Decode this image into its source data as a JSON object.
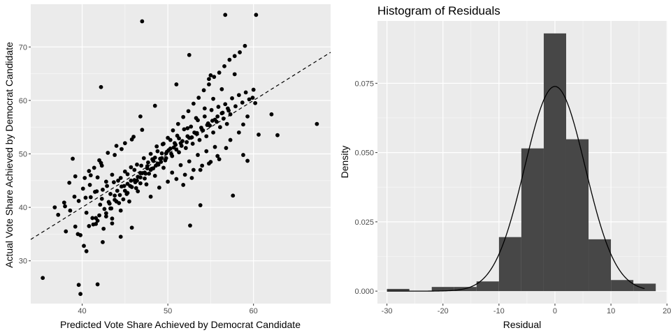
{
  "chart_data": [
    {
      "type": "scatter",
      "title": "",
      "xlabel": "Predicted Vote Share Achieved by Democrat Candidate",
      "ylabel": "Actual Vote Share Achieved by Democrat Candidate",
      "xlim": [
        34,
        69
      ],
      "ylim": [
        22,
        78
      ],
      "xticks": [
        40,
        50,
        60
      ],
      "yticks": [
        30,
        40,
        50,
        60,
        70
      ],
      "grid": true,
      "reference_line": {
        "style": "dashed",
        "slope": 1,
        "intercept": 0
      },
      "x": [
        35.4,
        39.6,
        39.8,
        41.8,
        39.5,
        40.2,
        40.5,
        40.8,
        41.6,
        42.4,
        42.2,
        43.5,
        44.5,
        45.8,
        52.6,
        53.8,
        57.6,
        60.6,
        62.8,
        67.4,
        62.1,
        60.2,
        58.8,
        59.3,
        59.9,
        47.0,
        56.7,
        60.3,
        52.5,
        55.0,
        54.8,
        51.0,
        46.8,
        48.5,
        37.2,
        37.9,
        38.5,
        38.9,
        39.2,
        38.1,
        36.8,
        39.1,
        39.6,
        40.1,
        40.5,
        40.9,
        41.2,
        41.5,
        41.8,
        42.1,
        42.4,
        42.8,
        43.1,
        43.5,
        43.8,
        44.2,
        44.6,
        45.0,
        45.3,
        45.7,
        46.1,
        46.4,
        46.8,
        47.2,
        47.6,
        48.0,
        48.3,
        48.7,
        49.1,
        49.5,
        49.9,
        50.3,
        50.7,
        51.1,
        51.5,
        51.9,
        52.3,
        52.7,
        53.1,
        53.5,
        53.9,
        54.3,
        54.7,
        55.1,
        55.5,
        55.9,
        56.3,
        56.7,
        57.1,
        57.5,
        57.9,
        58.3,
        58.7,
        59.1,
        59.5,
        60.0,
        41.0,
        41.7,
        42.3,
        42.9,
        43.3,
        43.7,
        44.1,
        44.5,
        44.9,
        45.3,
        45.7,
        46.1,
        46.5,
        46.9,
        47.3,
        47.7,
        48.1,
        48.5,
        48.9,
        49.3,
        49.7,
        50.1,
        50.5,
        50.9,
        51.3,
        51.7,
        52.1,
        52.5,
        52.9,
        53.3,
        53.7,
        54.1,
        54.5,
        54.9,
        55.3,
        55.7,
        56.1,
        56.5,
        56.9,
        57.3,
        42.0,
        42.6,
        43.2,
        43.8,
        44.4,
        45.0,
        45.6,
        46.2,
        46.8,
        47.4,
        48.0,
        48.6,
        49.2,
        49.8,
        50.4,
        51.0,
        51.6,
        52.2,
        52.8,
        53.4,
        54.0,
        54.6,
        55.2,
        55.8,
        56.4,
        57.0,
        41.4,
        42.0,
        42.5,
        43.0,
        43.5,
        44.0,
        44.5,
        45.0,
        45.5,
        46.0,
        46.5,
        47.0,
        47.5,
        48.0,
        48.5,
        49.0,
        49.5,
        50.0,
        50.5,
        51.0,
        51.5,
        52.0,
        52.5,
        53.0,
        53.5,
        54.0,
        54.5,
        55.0,
        55.5,
        56.0,
        40.3,
        40.8,
        41.3,
        41.8,
        42.3,
        42.8,
        43.3,
        43.8,
        44.3,
        44.8,
        45.3,
        45.8,
        46.3,
        46.8,
        47.3,
        47.8,
        48.3,
        48.8,
        49.3,
        49.8,
        50.3,
        50.8,
        51.3,
        51.8,
        52.3,
        52.8,
        53.3,
        53.8,
        54.3,
        54.8,
        55.3,
        55.8,
        56.3,
        56.8,
        57.3,
        57.8,
        58.3,
        58.8,
        59.3,
        38.0,
        38.6,
        39.2,
        39.8,
        40.4,
        41.0,
        41.6,
        42.2,
        42.8,
        43.4,
        44.0,
        44.6,
        45.2,
        45.8,
        46.4,
        47.0,
        47.6,
        48.2,
        48.8,
        49.4,
        50.0,
        50.6,
        51.2,
        51.8,
        52.4,
        53.0,
        53.6,
        54.2,
        54.8,
        55.4,
        56.0,
        56.6,
        57.2,
        57.8,
        58.4,
        59.0
      ],
      "y": [
        26.8,
        25.5,
        23.8,
        25.6,
        35.0,
        32.8,
        31.8,
        36.5,
        38.0,
        33.5,
        62.5,
        37.0,
        34.5,
        36.2,
        36.6,
        40.4,
        42.2,
        53.6,
        53.5,
        55.6,
        57.4,
        59.5,
        49.8,
        48.7,
        60.5,
        74.8,
        76.0,
        76.0,
        68.5,
        64.7,
        64.0,
        63.0,
        57.0,
        59.0,
        38.6,
        40.9,
        44.6,
        49.1,
        45.8,
        35.5,
        40.0,
        42.0,
        41.2,
        43.5,
        39.0,
        44.2,
        38.0,
        42.9,
        45.6,
        40.5,
        43.3,
        44.8,
        41.0,
        46.1,
        42.2,
        45.0,
        43.9,
        46.7,
        44.4,
        47.5,
        45.1,
        48.0,
        46.4,
        49.2,
        47.3,
        50.0,
        48.7,
        51.4,
        49.1,
        51.9,
        50.4,
        52.6,
        51.2,
        53.4,
        52.0,
        54.6,
        53.3,
        55.1,
        54.0,
        56.3,
        54.9,
        57.0,
        55.7,
        58.2,
        56.4,
        58.8,
        57.6,
        59.3,
        58.1,
        60.4,
        58.9,
        61.0,
        59.6,
        61.5,
        60.2,
        62.0,
        41.9,
        43.0,
        41.6,
        44.0,
        42.5,
        44.7,
        43.1,
        45.5,
        44.0,
        46.2,
        45.0,
        47.0,
        45.7,
        47.8,
        46.5,
        48.4,
        47.2,
        49.3,
        48.0,
        50.1,
        48.8,
        50.7,
        49.6,
        51.7,
        50.3,
        52.4,
        51.1,
        53.0,
        51.9,
        53.8,
        52.6,
        54.4,
        53.3,
        55.3,
        54.0,
        56.0,
        55.0,
        56.6,
        55.6,
        57.4,
        38.5,
        39.7,
        40.7,
        41.4,
        42.3,
        43.1,
        44.0,
        44.7,
        45.6,
        46.3,
        47.0,
        47.8,
        48.5,
        49.2,
        50.0,
        50.8,
        51.5,
        52.2,
        53.1,
        53.9,
        54.5,
        55.4,
        56.2,
        57.0,
        57.7,
        58.5,
        47.4,
        48.8,
        36.0,
        50.2,
        37.9,
        51.5,
        39.4,
        52.0,
        41.1,
        53.2,
        43.0,
        54.5,
        44.3,
        42.0,
        45.9,
        43.7,
        47.4,
        44.8,
        46.5,
        45.3,
        47.9,
        46.1,
        48.6,
        47.0,
        49.8,
        47.8,
        50.5,
        48.5,
        51.3,
        49.0,
        45.5,
        46.8,
        36.8,
        37.5,
        47.8,
        38.9,
        39.8,
        49.8,
        40.8,
        41.5,
        42.7,
        52.7,
        43.6,
        44.5,
        45.4,
        46.3,
        47.3,
        48.2,
        49.2,
        50.1,
        51.0,
        52.0,
        52.9,
        44.2,
        54.8,
        45.5,
        56.7,
        47.0,
        58.5,
        48.2,
        60.3,
        49.6,
        62.1,
        51.1,
        52.6,
        64.9,
        54.0,
        55.5,
        57.0,
        40.2,
        39.4,
        36.4,
        34.8,
        41.8,
        46.0,
        36.9,
        48.3,
        38.3,
        39.8,
        41.1,
        50.9,
        42.5,
        43.8,
        45.0,
        46.4,
        47.7,
        49.0,
        50.5,
        51.8,
        53.0,
        54.4,
        55.6,
        56.9,
        58.0,
        59.4,
        60.5,
        61.9,
        63.0,
        64.4,
        65.2,
        66.4,
        67.6,
        68.3,
        69.0,
        70.2
      ]
    },
    {
      "type": "bar",
      "title": "Histogram of Residuals",
      "xlabel": "Residual",
      "ylabel": "Density",
      "xlim": [
        -31.7,
        20.1
      ],
      "ylim": [
        -0.0045,
        0.0975
      ],
      "xticks": [
        -30,
        -20,
        -10,
        0,
        10,
        20
      ],
      "yticks": [
        "0.000",
        "0.025",
        "0.050",
        "0.075"
      ],
      "grid": true,
      "bin_edges": [
        -30,
        -26,
        -22,
        -18,
        -14,
        -10,
        -6,
        -2,
        2,
        6,
        10,
        14,
        18
      ],
      "values": [
        0.0008,
        0.0,
        0.0015,
        0.0015,
        0.0035,
        0.0195,
        0.0515,
        0.093,
        0.0548,
        0.0187,
        0.004,
        0.0027
      ],
      "density_curve": {
        "distribution": "normal",
        "mean": 0,
        "sd": 5.4,
        "x_range": [
          -30,
          16
        ]
      }
    }
  ]
}
